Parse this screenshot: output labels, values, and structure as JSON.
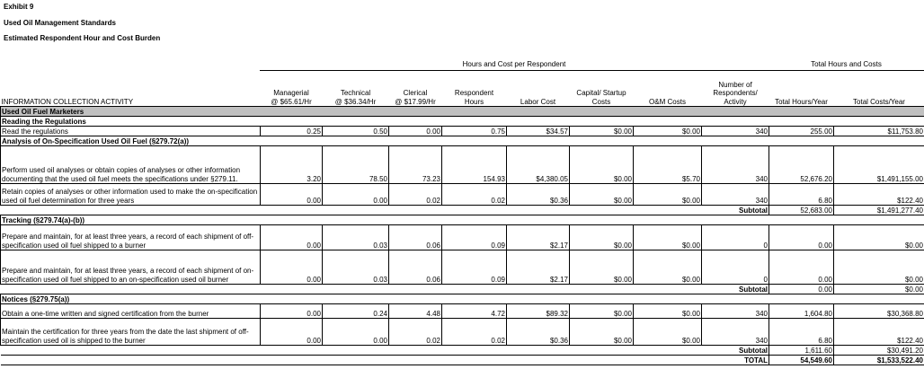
{
  "titles": [
    "Exhibit 9",
    "Used Oil Management Standards",
    "Estimated Respondent Hour and Cost Burden"
  ],
  "groups": {
    "per_respondent": "Hours and Cost per Respondent",
    "totals": "Total Hours and Costs"
  },
  "columns": [
    [
      "",
      "INFORMATION COLLECTION ACTIVITY"
    ],
    [
      "Managerial",
      "@ $65.61/Hr"
    ],
    [
      "Technical",
      "@ $36.34/Hr"
    ],
    [
      "Clerical",
      "@ $17.99/Hr"
    ],
    [
      "Respondent",
      "Hours"
    ],
    [
      "",
      "Labor Cost"
    ],
    [
      "Capital/ Startup",
      "Costs"
    ],
    [
      "",
      "O&M Costs"
    ],
    [
      "Number of Respondents/",
      "Activity"
    ],
    [
      "",
      "Total Hours/Year"
    ],
    [
      "",
      "Total Costs/Year"
    ]
  ],
  "category": "Used Oil Fuel Marketers",
  "sections": [
    {
      "title": "Reading the Regulations",
      "rows": [
        [
          "Read the regulations",
          "0.25",
          "0.50",
          "0.00",
          "0.75",
          "$34.57",
          "$0.00",
          "$0.00",
          "340",
          "255.00",
          "$11,753.80"
        ]
      ]
    },
    {
      "title": "Analysis of On-Specification Used Oil Fuel (§279.72(a))",
      "rows": [
        [
          "Perform used oil analyses or obtain copies of analyses or other information documenting that the used oil fuel meets the specifications under §279.11.",
          "3.20",
          "78.50",
          "73.23",
          "154.93",
          "$4,380.05",
          "$0.00",
          "$5.70",
          "340",
          "52,676.20",
          "$1,491,155.00"
        ],
        [
          "Retain copies of analyses or other information used to make the on-specification used oil fuel determination for three years",
          "0.00",
          "0.00",
          "0.02",
          "0.02",
          "$0.36",
          "$0.00",
          "$0.00",
          "340",
          "6.80",
          "$122.40"
        ]
      ],
      "subtotal": {
        "label": "Subtotal",
        "hours": "52,683.00",
        "costs": "$1,491,277.40"
      }
    },
    {
      "title": "Tracking (§279.74(a)-(b))",
      "rows": [
        [
          "Prepare and maintain, for at least three years, a record of each shipment of off-specification used oil fuel shipped to a burner",
          "0.00",
          "0.03",
          "0.06",
          "0.09",
          "$2.17",
          "$0.00",
          "$0.00",
          "0",
          "0.00",
          "$0.00"
        ],
        [
          "Prepare and maintain, for at least three years, a record of each shipment of on-specification used oil fuel shipped to an on-specification used oil burner",
          "0.00",
          "0.03",
          "0.06",
          "0.09",
          "$2.17",
          "$0.00",
          "$0.00",
          "0",
          "0.00",
          "$0.00"
        ]
      ],
      "subtotal": {
        "label": "Subtotal",
        "hours": "0.00",
        "costs": "$0.00"
      }
    },
    {
      "title": "Notices (§279.75(a))",
      "rows": [
        [
          "Obtain a one-time written and signed certification from the burner",
          "0.00",
          "0.24",
          "4.48",
          "4.72",
          "$89.32",
          "$0.00",
          "$0.00",
          "340",
          "1,604.80",
          "$30,368.80"
        ],
        [
          "Maintain the certification for three years from the date the last shipment of off-specification used oil is shipped to the burner",
          "0.00",
          "0.00",
          "0.02",
          "0.02",
          "$0.36",
          "$0.00",
          "$0.00",
          "340",
          "6.80",
          "$122.40"
        ]
      ],
      "subtotal": {
        "label": "Subtotal",
        "hours": "1,611.60",
        "costs": "$30,491.20"
      }
    }
  ],
  "total": {
    "label": "TOTAL",
    "hours": "54,549.60",
    "costs": "$1,533,522.40"
  }
}
